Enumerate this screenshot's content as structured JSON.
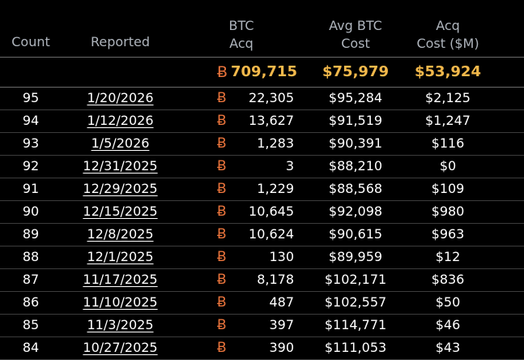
{
  "colors": {
    "background": "#000000",
    "header_text": "#aeb4bc",
    "totals_text": "#f2b84b",
    "btc_symbol": "#e8733b",
    "row_text": "#ffffff"
  },
  "header": {
    "count": "Count",
    "reported": "Reported",
    "btc_acq_line1": "BTC",
    "btc_acq_line2": "Acq",
    "avg_cost_line1": "Avg BTC",
    "avg_cost_line2": "Cost",
    "acq_cost_line1": "Acq",
    "acq_cost_line2": "Cost ($M)"
  },
  "btc_symbol": "Ƀ",
  "totals": {
    "btc_acq": "709,715",
    "avg_cost": "$75,979",
    "acq_cost": "$53,924"
  },
  "rows": [
    {
      "count": "95",
      "reported": "1/20/2026",
      "btc_acq": "22,305",
      "avg_cost": "$95,284",
      "acq_cost": "$2,125"
    },
    {
      "count": "94",
      "reported": "1/12/2026",
      "btc_acq": "13,627",
      "avg_cost": "$91,519",
      "acq_cost": "$1,247"
    },
    {
      "count": "93",
      "reported": "1/5/2026",
      "btc_acq": "1,283",
      "avg_cost": "$90,391",
      "acq_cost": "$116"
    },
    {
      "count": "92",
      "reported": "12/31/2025",
      "btc_acq": "3",
      "avg_cost": "$88,210",
      "acq_cost": "$0"
    },
    {
      "count": "91",
      "reported": "12/29/2025",
      "btc_acq": "1,229",
      "avg_cost": "$88,568",
      "acq_cost": "$109"
    },
    {
      "count": "90",
      "reported": "12/15/2025",
      "btc_acq": "10,645",
      "avg_cost": "$92,098",
      "acq_cost": "$980"
    },
    {
      "count": "89",
      "reported": "12/8/2025",
      "btc_acq": "10,624",
      "avg_cost": "$90,615",
      "acq_cost": "$963"
    },
    {
      "count": "88",
      "reported": "12/1/2025",
      "btc_acq": "130",
      "avg_cost": "$89,959",
      "acq_cost": "$12"
    },
    {
      "count": "87",
      "reported": "11/17/2025",
      "btc_acq": "8,178",
      "avg_cost": "$102,171",
      "acq_cost": "$836"
    },
    {
      "count": "86",
      "reported": "11/10/2025",
      "btc_acq": "487",
      "avg_cost": "$102,557",
      "acq_cost": "$50"
    },
    {
      "count": "85",
      "reported": "11/3/2025",
      "btc_acq": "397",
      "avg_cost": "$114,771",
      "acq_cost": "$46"
    },
    {
      "count": "84",
      "reported": "10/27/2025",
      "btc_acq": "390",
      "avg_cost": "$111,053",
      "acq_cost": "$43"
    }
  ]
}
